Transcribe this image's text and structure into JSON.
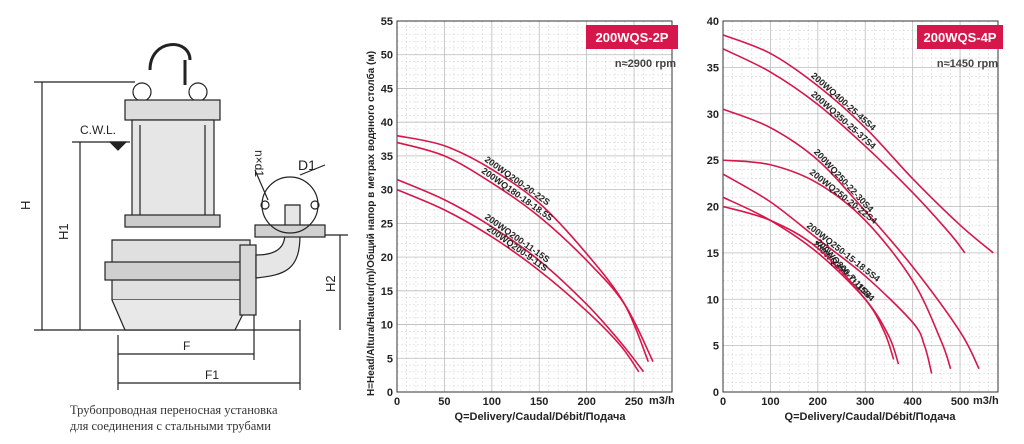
{
  "drawing": {
    "labels": {
      "cwl": "C.W.L.",
      "h": "H",
      "h1": "H1",
      "h2": "H2",
      "f": "F",
      "f1": "F1",
      "d1": "D1",
      "nxd": "n×d1"
    },
    "caption": {
      "line1": "Трубопроводная переносная установка",
      "line2": "для соединения с стальными трубами"
    }
  },
  "chart_data": [
    {
      "type": "line",
      "badge": "200WQS-2P",
      "speed": "n≈2900 rpm",
      "ylabel": "H=Head/Altura/Hauteur(m)/Общий напор в метрах водяного столба (м)",
      "xlabel": "Q=Delivery/Caudal/Débit/Подача",
      "x_unit": "m3/h",
      "xlim": [
        0,
        290
      ],
      "ylim": [
        0,
        55
      ],
      "x_ticks": [
        0,
        50,
        100,
        150,
        200,
        250
      ],
      "y_ticks": [
        0,
        5,
        10,
        15,
        20,
        25,
        30,
        35,
        40,
        45,
        50,
        55
      ],
      "grid": true,
      "accent": "#d6174b",
      "series": [
        {
          "name": "200WQ200-20-22S",
          "x": [
            0,
            50,
            100,
            150,
            200,
            240,
            265
          ],
          "y": [
            38,
            36.5,
            33,
            28,
            20.5,
            13,
            4.5
          ]
        },
        {
          "name": "200WQ180-18-18.5S",
          "x": [
            0,
            50,
            100,
            150,
            200,
            240,
            270
          ],
          "y": [
            37,
            35,
            31,
            26,
            19.5,
            13,
            4.5
          ]
        },
        {
          "name": "200WQ200-11-15S",
          "x": [
            0,
            50,
            100,
            150,
            200,
            235,
            260
          ],
          "y": [
            31.5,
            28.5,
            24.5,
            19.5,
            13,
            7.5,
            3
          ]
        },
        {
          "name": "200WQ200-9-11S",
          "x": [
            0,
            50,
            100,
            150,
            200,
            235,
            255
          ],
          "y": [
            30,
            27,
            23,
            18,
            12,
            7,
            3
          ]
        }
      ]
    },
    {
      "type": "line",
      "badge": "200WQS-4P",
      "speed": "n≈1450 rpm",
      "ylabel": "",
      "xlabel": "Q=Delivery/Caudal/Débit/Подача",
      "x_unit": "m3/h",
      "xlim": [
        0,
        580
      ],
      "ylim": [
        0,
        40
      ],
      "x_ticks": [
        0,
        100,
        200,
        300,
        400,
        500
      ],
      "y_ticks": [
        0,
        5,
        10,
        15,
        20,
        25,
        30,
        35,
        40
      ],
      "grid": true,
      "accent": "#d6174b",
      "series": [
        {
          "name": "200WQ400-25-45S4",
          "x": [
            0,
            100,
            200,
            300,
            400,
            500,
            570
          ],
          "y": [
            38.5,
            36.5,
            33,
            28.5,
            23,
            18,
            15
          ]
        },
        {
          "name": "200WQ350-25-37S4",
          "x": [
            0,
            100,
            200,
            300,
            400,
            480,
            510
          ],
          "y": [
            37,
            34.5,
            31,
            26.5,
            21.5,
            17,
            15
          ]
        },
        {
          "name": "200WQ250-22-30S4",
          "x": [
            0,
            100,
            200,
            300,
            400,
            500,
            540
          ],
          "y": [
            30.5,
            28.5,
            25,
            19.5,
            13.5,
            6.5,
            2.5
          ]
        },
        {
          "name": "200WQ250-20-22S4",
          "x": [
            0,
            100,
            200,
            300,
            400,
            460,
            480
          ],
          "y": [
            25,
            24.5,
            22.5,
            18.5,
            12,
            5.5,
            2.5
          ]
        },
        {
          "name": "200WQ250-15-18.5S4",
          "x": [
            0,
            100,
            200,
            300,
            400,
            425,
            440
          ],
          "y": [
            23.5,
            20.5,
            16.5,
            12.5,
            7.5,
            5,
            2
          ]
        },
        {
          "name": "200WQ250-11-15S4",
          "x": [
            0,
            100,
            200,
            300,
            350,
            370
          ],
          "y": [
            21,
            18.5,
            15,
            10,
            6,
            3
          ]
        },
        {
          "name": "200WQ300-7-11S4",
          "x": [
            0,
            100,
            200,
            300,
            340,
            360
          ],
          "y": [
            20,
            18.5,
            15.5,
            10,
            6.5,
            3.5
          ]
        }
      ]
    }
  ]
}
